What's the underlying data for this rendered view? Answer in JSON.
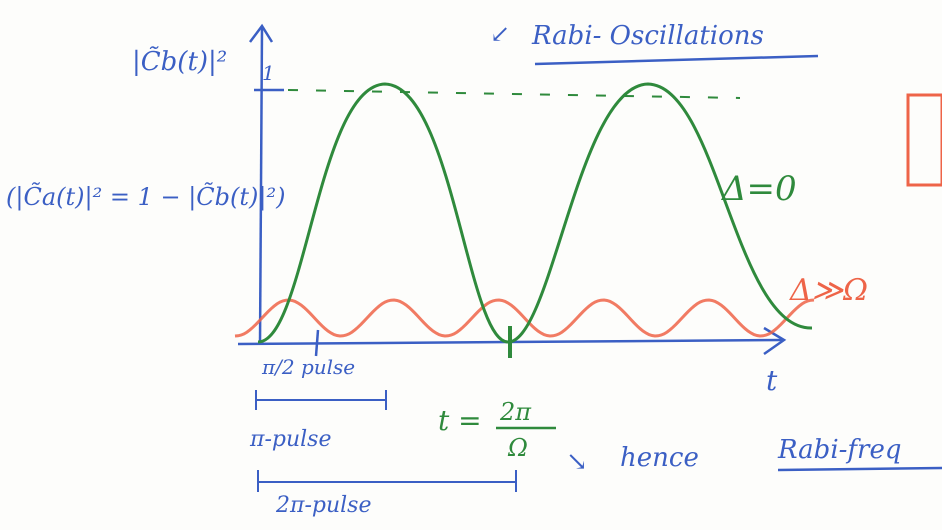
{
  "title": "Rabi- Oscillations",
  "y_axis_label": "|C̃b(t)|²",
  "y_tick": "1",
  "relation": "(|C̃a(t)|² = 1 − |C̃b(t)|²)",
  "x_axis_label": "t",
  "curves": [
    {
      "label": "Δ=0"
    },
    {
      "label": "Δ≫Ω"
    }
  ],
  "pulses": [
    "π/2 pulse",
    "π-pulse",
    "2π-pulse"
  ],
  "period": {
    "lhs": "t =",
    "numerator": "2π",
    "denominator": "Ω"
  },
  "note": "hence",
  "continuation": "Rabi-freq"
}
